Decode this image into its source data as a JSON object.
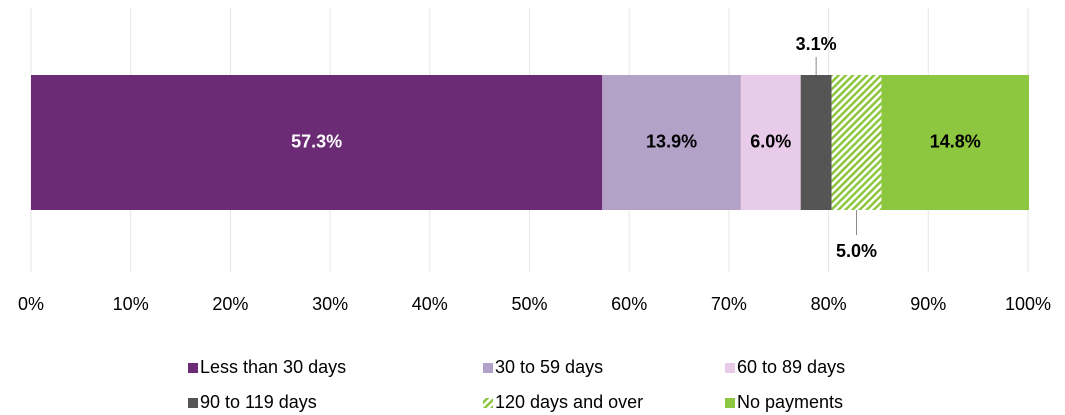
{
  "chart_data": {
    "type": "stacked_bar",
    "series": [
      {
        "name": "Less than 30 days",
        "color": "#6b2c75",
        "values": [
          57.3
        ],
        "value_labels": [
          "57.3%"
        ]
      },
      {
        "name": "30 to 59 days",
        "color": "#b3a2c8",
        "values": [
          13.9
        ],
        "value_labels": [
          "13.9%"
        ]
      },
      {
        "name": "60 to 89 days",
        "color": "#e8cbe8",
        "values": [
          6.0
        ],
        "value_labels": [
          "6.0%"
        ]
      },
      {
        "name": "90 to 119 days",
        "color": "#555555",
        "values": [
          3.1
        ],
        "value_labels": [
          "3.1%"
        ]
      },
      {
        "name": "120 days and over",
        "color": "#8dc63f",
        "pattern": "hatch",
        "values": [
          5.0
        ],
        "value_labels": [
          "5.0%"
        ]
      },
      {
        "name": "No payments",
        "color": "#8dc63f",
        "values": [
          14.8
        ],
        "value_labels": [
          "14.8%"
        ]
      }
    ],
    "xlim": [
      0,
      100
    ],
    "xticks": [
      {
        "value": 0,
        "label": "0%"
      },
      {
        "value": 10,
        "label": "10%"
      },
      {
        "value": 20,
        "label": "20%"
      },
      {
        "value": 30,
        "label": "30%"
      },
      {
        "value": 40,
        "label": "40%"
      },
      {
        "value": 50,
        "label": "50%"
      },
      {
        "value": 60,
        "label": "60%"
      },
      {
        "value": 70,
        "label": "70%"
      },
      {
        "value": 80,
        "label": "80%"
      },
      {
        "value": 90,
        "label": "90%"
      },
      {
        "value": 100,
        "label": "100%"
      }
    ],
    "grid": true,
    "legend": "bottom"
  }
}
